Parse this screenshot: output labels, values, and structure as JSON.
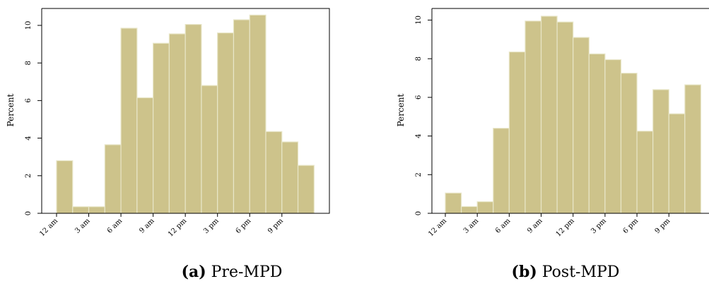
{
  "chart_data": [
    {
      "type": "bar",
      "caption_letter": "(a)",
      "caption_text": "Pre-MPD",
      "ylabel": "Percent",
      "ylim": [
        0,
        10.9
      ],
      "yticks": [
        0,
        2,
        4,
        6,
        8,
        10
      ],
      "xticks": [
        {
          "hour": 0,
          "label": "12 am"
        },
        {
          "hour": 3,
          "label": "3 am"
        },
        {
          "hour": 6,
          "label": "6 am"
        },
        {
          "hour": 9,
          "label": "9 am"
        },
        {
          "hour": 12,
          "label": "12 pm"
        },
        {
          "hour": 15,
          "label": "3 pm"
        },
        {
          "hour": 18,
          "label": "6 pm"
        },
        {
          "hour": 21,
          "label": "9 pm"
        }
      ],
      "bin_width_hours": 1.5,
      "bin_start_hours": [
        0,
        1.5,
        3,
        4.5,
        6,
        7.5,
        9,
        10.5,
        12,
        13.5,
        15,
        16.5,
        18,
        19.5,
        21,
        22.5
      ],
      "values": [
        2.8,
        0.35,
        0.35,
        3.65,
        9.85,
        6.15,
        9.05,
        9.55,
        10.05,
        6.8,
        9.6,
        10.3,
        10.55,
        4.35,
        3.8,
        2.55
      ],
      "bar_color": "#cdc38b",
      "grid": false
    },
    {
      "type": "bar",
      "caption_letter": "(b)",
      "caption_text": "Post-MPD",
      "ylabel": "Percent",
      "ylim": [
        0,
        10.6
      ],
      "yticks": [
        0,
        2,
        4,
        6,
        8,
        10
      ],
      "xticks": [
        {
          "hour": 0,
          "label": "12 am"
        },
        {
          "hour": 3,
          "label": "3 am"
        },
        {
          "hour": 6,
          "label": "6 am"
        },
        {
          "hour": 9,
          "label": "9 am"
        },
        {
          "hour": 12,
          "label": "12 pm"
        },
        {
          "hour": 15,
          "label": "3 pm"
        },
        {
          "hour": 18,
          "label": "6 pm"
        },
        {
          "hour": 21,
          "label": "9 pm"
        }
      ],
      "bin_width_hours": 1.5,
      "bin_start_hours": [
        0,
        1.5,
        3,
        4.5,
        6,
        7.5,
        9,
        10.5,
        12,
        13.5,
        15,
        16.5,
        18,
        19.5,
        21,
        22.5
      ],
      "values": [
        1.05,
        0.35,
        0.6,
        4.4,
        8.35,
        9.95,
        10.2,
        9.9,
        9.1,
        8.25,
        7.95,
        7.25,
        4.25,
        6.4,
        5.15,
        6.65
      ],
      "bar_color": "#cdc38b",
      "grid": false
    }
  ]
}
